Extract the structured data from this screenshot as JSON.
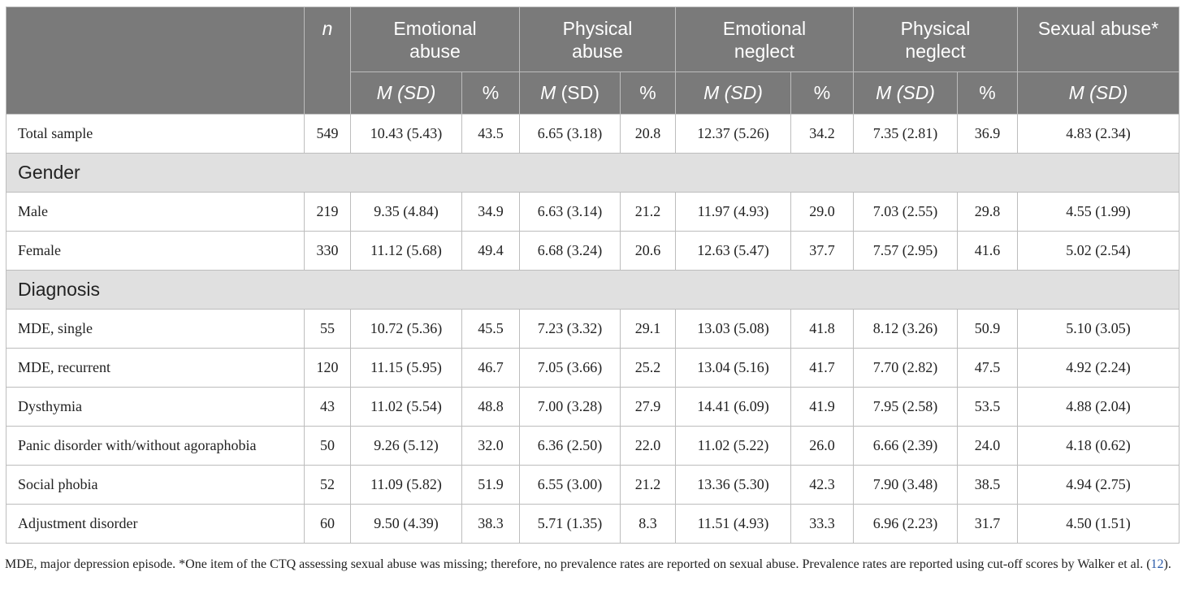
{
  "header": {
    "n_label": "n",
    "groups": [
      {
        "line1": "Emotional",
        "line2": "abuse"
      },
      {
        "line1": "Physical",
        "line2": "abuse"
      },
      {
        "line1": "Emotional",
        "line2": "neglect"
      },
      {
        "line1": "Physical",
        "line2": "neglect"
      },
      {
        "line1": "Sexual abuse*",
        "line2": ""
      }
    ],
    "m_label": "M",
    "sd_italic": "(SD)",
    "sd_upright": "(SD)",
    "pct": "%"
  },
  "rows": {
    "total": {
      "label": "Total sample",
      "n": "549",
      "ea": "10.43 (5.43)",
      "ea_p": "43.5",
      "pa": "6.65 (3.18)",
      "pa_p": "20.8",
      "en": "12.37 (5.26)",
      "en_p": "34.2",
      "pn": "7.35 (2.81)",
      "pn_p": "36.9",
      "sa": "4.83 (2.34)"
    },
    "gender_section": "Gender",
    "male": {
      "label": "Male",
      "n": "219",
      "ea": "9.35 (4.84)",
      "ea_p": "34.9",
      "pa": "6.63 (3.14)",
      "pa_p": "21.2",
      "en": "11.97 (4.93)",
      "en_p": "29.0",
      "pn": "7.03 (2.55)",
      "pn_p": "29.8",
      "sa": "4.55 (1.99)"
    },
    "female": {
      "label": "Female",
      "n": "330",
      "ea": "11.12 (5.68)",
      "ea_p": "49.4",
      "pa": "6.68 (3.24)",
      "pa_p": "20.6",
      "en": "12.63 (5.47)",
      "en_p": "37.7",
      "pn": "7.57 (2.95)",
      "pn_p": "41.6",
      "sa": "5.02 (2.54)"
    },
    "diagnosis_section": "Diagnosis",
    "mde_single": {
      "label": "MDE, single",
      "n": "55",
      "ea": "10.72 (5.36)",
      "ea_p": "45.5",
      "pa": "7.23 (3.32)",
      "pa_p": "29.1",
      "en": "13.03 (5.08)",
      "en_p": "41.8",
      "pn": "8.12 (3.26)",
      "pn_p": "50.9",
      "sa": "5.10 (3.05)"
    },
    "mde_recurrent": {
      "label": "MDE, recurrent",
      "n": "120",
      "ea": "11.15 (5.95)",
      "ea_p": "46.7",
      "pa": "7.05 (3.66)",
      "pa_p": "25.2",
      "en": "13.04 (5.16)",
      "en_p": "41.7",
      "pn": "7.70 (2.82)",
      "pn_p": "47.5",
      "sa": "4.92 (2.24)"
    },
    "dysthymia": {
      "label": "Dysthymia",
      "n": "43",
      "ea": "11.02 (5.54)",
      "ea_p": "48.8",
      "pa": "7.00 (3.28)",
      "pa_p": "27.9",
      "en": "14.41 (6.09)",
      "en_p": "41.9",
      "pn": "7.95 (2.58)",
      "pn_p": "53.5",
      "sa": "4.88 (2.04)"
    },
    "panic": {
      "label": "Panic disorder with/without agoraphobia",
      "n": "50",
      "ea": "9.26 (5.12)",
      "ea_p": "32.0",
      "pa": "6.36 (2.50)",
      "pa_p": "22.0",
      "en": "11.02 (5.22)",
      "en_p": "26.0",
      "pn": "6.66 (2.39)",
      "pn_p": "24.0",
      "sa": "4.18 (0.62)"
    },
    "social": {
      "label": "Social phobia",
      "n": "52",
      "ea": "11.09 (5.82)",
      "ea_p": "51.9",
      "pa": "6.55 (3.00)",
      "pa_p": "21.2",
      "en": "13.36 (5.30)",
      "en_p": "42.3",
      "pn": "7.90 (3.48)",
      "pn_p": "38.5",
      "sa": "4.94 (2.75)"
    },
    "adjustment": {
      "label": "Adjustment disorder",
      "n": "60",
      "ea": "9.50 (4.39)",
      "ea_p": "38.3",
      "pa": "5.71 (1.35)",
      "pa_p": "8.3",
      "en": "11.51 (4.93)",
      "en_p": "33.3",
      "pn": "6.96 (2.23)",
      "pn_p": "31.7",
      "sa": "4.50 (1.51)"
    }
  },
  "footnote": {
    "text_before": "MDE, major depression episode. *One item of the CTQ assessing sexual abuse was missing; therefore, no prevalence rates are reported on sexual abuse. Prevalence rates are reported using cut-off scores by Walker et al. (",
    "ref": "12",
    "text_after": ")."
  }
}
